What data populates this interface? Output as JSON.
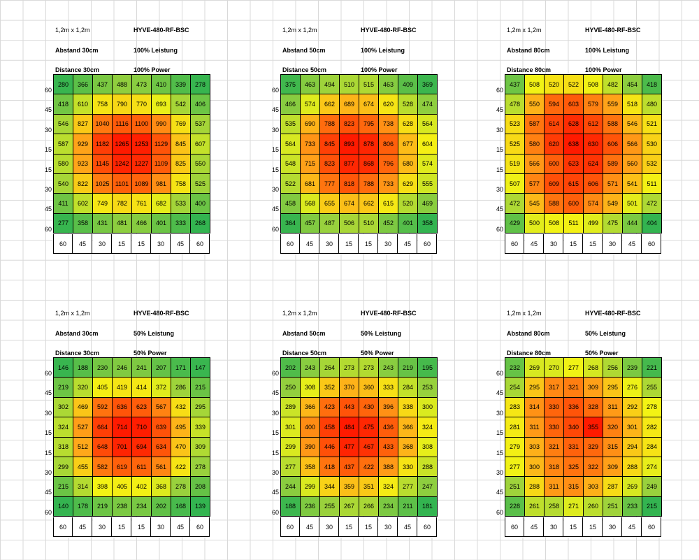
{
  "chart_data": [
    {
      "type": "heatmap",
      "size_label": "1,2m x 1,2m",
      "model": "HYVE-480-RF-BSC",
      "distance_de": "Abstand 30cm",
      "power_de": "100% Leistung",
      "distance_en": "Distance 30cm",
      "power_en": "100% Power",
      "row_labels": [
        "60",
        "45",
        "30",
        "15",
        "15",
        "30",
        "45",
        "60"
      ],
      "col_labels": [
        "60",
        "45",
        "30",
        "15",
        "15",
        "30",
        "45",
        "60"
      ],
      "values": [
        [
          280,
          366,
          437,
          488,
          473,
          410,
          339,
          278
        ],
        [
          418,
          610,
          758,
          790,
          770,
          693,
          542,
          406
        ],
        [
          546,
          827,
          1040,
          1116,
          1100,
          990,
          769,
          537
        ],
        [
          587,
          929,
          1182,
          1265,
          1253,
          1129,
          845,
          607
        ],
        [
          580,
          923,
          1145,
          1242,
          1227,
          1109,
          825,
          550
        ],
        [
          540,
          822,
          1025,
          1101,
          1089,
          981,
          758,
          525
        ],
        [
          411,
          602,
          749,
          782,
          761,
          682,
          533,
          400
        ],
        [
          277,
          358,
          431,
          481,
          466,
          401,
          333,
          268
        ]
      ]
    },
    {
      "type": "heatmap",
      "size_label": "1,2m x 1,2m",
      "model": "HYVE-480-RF-BSC",
      "distance_de": "Abstand 50cm",
      "power_de": "100% Leistung",
      "distance_en": "Distance 50cm",
      "power_en": "100% Power",
      "row_labels": [
        "60",
        "45",
        "30",
        "15",
        "15",
        "30",
        "45",
        "60"
      ],
      "col_labels": [
        "60",
        "45",
        "30",
        "15",
        "15",
        "30",
        "45",
        "60"
      ],
      "values": [
        [
          375,
          463,
          494,
          510,
          515,
          463,
          409,
          369
        ],
        [
          466,
          574,
          662,
          689,
          674,
          620,
          528,
          474
        ],
        [
          535,
          690,
          788,
          823,
          795,
          738,
          628,
          564
        ],
        [
          564,
          733,
          845,
          893,
          878,
          806,
          677,
          604
        ],
        [
          548,
          715,
          823,
          877,
          868,
          796,
          680,
          574
        ],
        [
          522,
          681,
          777,
          818,
          788,
          733,
          629,
          555
        ],
        [
          458,
          568,
          655,
          674,
          662,
          615,
          520,
          469
        ],
        [
          364,
          457,
          487,
          506,
          510,
          452,
          401,
          358
        ]
      ]
    },
    {
      "type": "heatmap",
      "size_label": "1,2m x 1,2m",
      "model": "HYVE-480-RF-BSC",
      "distance_de": "Abstand 80cm",
      "power_de": "100% Leistung",
      "distance_en": "Distance 80cm",
      "power_en": "100% Power",
      "row_labels": [
        "60",
        "45",
        "30",
        "15",
        "15",
        "30",
        "45",
        "60"
      ],
      "col_labels": [
        "60",
        "45",
        "30",
        "15",
        "15",
        "30",
        "45",
        "60"
      ],
      "values": [
        [
          437,
          508,
          520,
          522,
          508,
          482,
          454,
          418
        ],
        [
          478,
          550,
          594,
          603,
          579,
          559,
          518,
          480
        ],
        [
          523,
          587,
          614,
          628,
          612,
          588,
          546,
          521
        ],
        [
          525,
          580,
          620,
          638,
          630,
          606,
          566,
          530
        ],
        [
          519,
          566,
          600,
          623,
          624,
          589,
          560,
          532
        ],
        [
          507,
          577,
          609,
          615,
          606,
          571,
          541,
          511
        ],
        [
          472,
          545,
          588,
          600,
          574,
          549,
          501,
          472
        ],
        [
          429,
          500,
          508,
          511,
          499,
          475,
          444,
          404
        ]
      ]
    },
    {
      "type": "heatmap",
      "size_label": "1,2m x 1,2m",
      "model": "HYVE-480-RF-BSC",
      "distance_de": "Abstand 30cm",
      "power_de": "50% Leistung",
      "distance_en": "Distance 30cm",
      "power_en": "50% Power",
      "row_labels": [
        "60",
        "45",
        "30",
        "15",
        "15",
        "30",
        "45",
        "60"
      ],
      "col_labels": [
        "60",
        "45",
        "30",
        "15",
        "15",
        "30",
        "45",
        "60"
      ],
      "values": [
        [
          146,
          188,
          230,
          246,
          241,
          207,
          171,
          147
        ],
        [
          219,
          320,
          405,
          419,
          414,
          372,
          286,
          215
        ],
        [
          302,
          469,
          592,
          636,
          623,
          567,
          432,
          295
        ],
        [
          324,
          527,
          664,
          714,
          710,
          639,
          495,
          339
        ],
        [
          318,
          512,
          648,
          701,
          694,
          634,
          470,
          309
        ],
        [
          299,
          455,
          582,
          619,
          611,
          561,
          422,
          278
        ],
        [
          215,
          314,
          398,
          405,
          402,
          368,
          278,
          208
        ],
        [
          140,
          178,
          219,
          238,
          234,
          202,
          168,
          139
        ]
      ]
    },
    {
      "type": "heatmap",
      "size_label": "1,2m x 1,2m",
      "model": "HYVE-480-RF-BSC",
      "distance_de": "Abstand 50cm",
      "power_de": "50% Leistung",
      "distance_en": "Distance 50cm",
      "power_en": "50% Power",
      "row_labels": [
        "60",
        "45",
        "30",
        "15",
        "15",
        "30",
        "45",
        "60"
      ],
      "col_labels": [
        "60",
        "45",
        "30",
        "15",
        "15",
        "30",
        "45",
        "60"
      ],
      "values": [
        [
          202,
          243,
          264,
          273,
          273,
          243,
          219,
          195
        ],
        [
          250,
          308,
          352,
          370,
          360,
          333,
          284,
          253
        ],
        [
          289,
          366,
          423,
          443,
          430,
          396,
          338,
          300
        ],
        [
          301,
          400,
          458,
          484,
          475,
          436,
          366,
          324
        ],
        [
          299,
          390,
          446,
          477,
          467,
          433,
          368,
          308
        ],
        [
          277,
          358,
          418,
          437,
          422,
          388,
          330,
          288
        ],
        [
          244,
          299,
          344,
          359,
          351,
          324,
          277,
          247
        ],
        [
          188,
          236,
          255,
          267,
          266,
          234,
          211,
          181
        ]
      ]
    },
    {
      "type": "heatmap",
      "size_label": "1,2m x 1,2m",
      "model": "HYVE-480-RF-BSC",
      "distance_de": "Abstand 80cm",
      "power_de": "50% Leistung",
      "distance_en": "Distance 80cm",
      "power_en": "50% Power",
      "row_labels": [
        "60",
        "45",
        "30",
        "15",
        "15",
        "30",
        "45",
        "60"
      ],
      "col_labels": [
        "60",
        "45",
        "30",
        "15",
        "15",
        "30",
        "45",
        "60"
      ],
      "values": [
        [
          232,
          269,
          270,
          277,
          268,
          256,
          239,
          221
        ],
        [
          254,
          295,
          317,
          321,
          309,
          295,
          276,
          255
        ],
        [
          283,
          314,
          330,
          336,
          328,
          311,
          292,
          278
        ],
        [
          281,
          311,
          330,
          340,
          355,
          320,
          301,
          282
        ],
        [
          279,
          303,
          321,
          331,
          329,
          315,
          294,
          284
        ],
        [
          277,
          300,
          318,
          325,
          322,
          309,
          288,
          274
        ],
        [
          251,
          288,
          311,
          315,
          303,
          287,
          269,
          249
        ],
        [
          228,
          261,
          258,
          271,
          260,
          251,
          233,
          215
        ]
      ]
    }
  ]
}
